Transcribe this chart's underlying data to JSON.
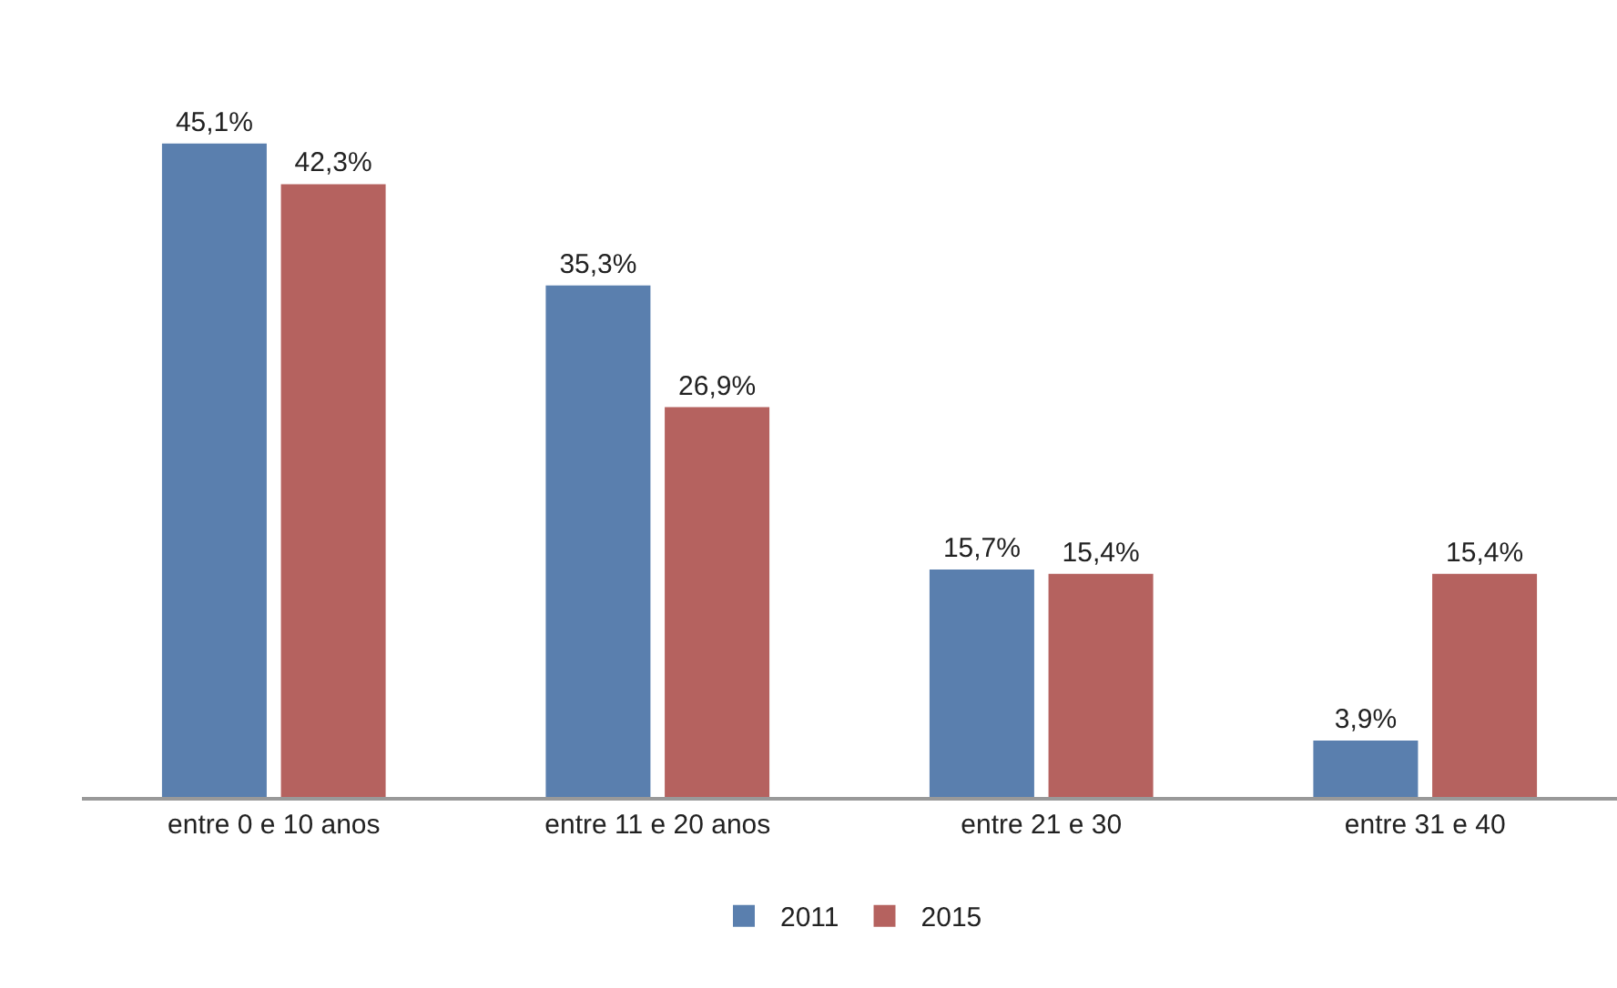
{
  "chart_data": {
    "type": "bar",
    "categories": [
      "entre 0 e 10 anos",
      "entre 11 e 20 anos",
      "entre 21 e 30",
      "entre 31 e 40"
    ],
    "series": [
      {
        "name": "2011",
        "color": "#5a7fae",
        "values": [
          45.1,
          35.3,
          15.7,
          3.9
        ],
        "value_labels": [
          "45,1%",
          "35,3%",
          "15,7%",
          "3,9%"
        ]
      },
      {
        "name": "2015",
        "color": "#b5625f",
        "values": [
          42.3,
          26.9,
          15.4,
          15.4
        ],
        "value_labels": [
          "42,3%",
          "26,9%",
          "15,4%",
          "15,4%"
        ]
      }
    ],
    "legend": "bottom",
    "grid": false
  }
}
